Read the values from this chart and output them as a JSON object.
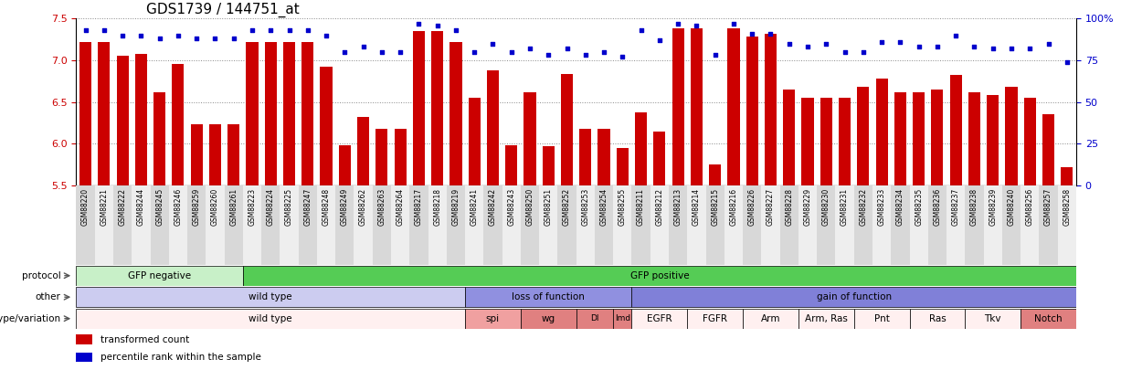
{
  "title": "GDS1739 / 144751_at",
  "samples": [
    "GSM88220",
    "GSM88221",
    "GSM88222",
    "GSM88244",
    "GSM88245",
    "GSM88246",
    "GSM88259",
    "GSM88260",
    "GSM88261",
    "GSM88223",
    "GSM88224",
    "GSM88225",
    "GSM88247",
    "GSM88248",
    "GSM88249",
    "GSM88262",
    "GSM88263",
    "GSM88264",
    "GSM88217",
    "GSM88218",
    "GSM88219",
    "GSM88241",
    "GSM88242",
    "GSM88243",
    "GSM88250",
    "GSM88251",
    "GSM88252",
    "GSM88253",
    "GSM88254",
    "GSM88255",
    "GSM88211",
    "GSM88212",
    "GSM88213",
    "GSM88214",
    "GSM88215",
    "GSM88216",
    "GSM88226",
    "GSM88227",
    "GSM88228",
    "GSM88229",
    "GSM88230",
    "GSM88231",
    "GSM88232",
    "GSM88233",
    "GSM88234",
    "GSM88235",
    "GSM88236",
    "GSM88237",
    "GSM88238",
    "GSM88239",
    "GSM88240",
    "GSM88256",
    "GSM88257",
    "GSM88258"
  ],
  "bar_values": [
    7.22,
    7.22,
    7.05,
    7.08,
    6.62,
    6.95,
    6.23,
    6.23,
    6.23,
    7.22,
    7.22,
    7.22,
    7.22,
    6.92,
    5.98,
    6.32,
    6.18,
    6.18,
    7.35,
    7.35,
    7.22,
    6.55,
    6.88,
    5.98,
    6.62,
    5.97,
    6.83,
    6.18,
    6.18,
    5.95,
    6.38,
    6.15,
    7.38,
    7.38,
    5.75,
    7.38,
    7.28,
    7.32,
    6.65,
    6.55,
    6.55,
    6.55,
    6.68,
    6.78,
    6.62,
    6.62,
    6.65,
    6.82,
    6.62,
    6.58,
    6.68,
    6.55,
    6.35,
    5.72
  ],
  "percentile_values": [
    93,
    93,
    90,
    90,
    88,
    90,
    88,
    88,
    88,
    93,
    93,
    93,
    93,
    90,
    80,
    83,
    80,
    80,
    97,
    96,
    93,
    80,
    85,
    80,
    82,
    78,
    82,
    78,
    80,
    77,
    93,
    87,
    97,
    96,
    78,
    97,
    91,
    91,
    85,
    83,
    85,
    80,
    80,
    86,
    86,
    83,
    83,
    90,
    83,
    82,
    82,
    82,
    85,
    74
  ],
  "protocol_groups": [
    {
      "label": "GFP negative",
      "start": 0,
      "end": 9,
      "color": "#c8f0c8"
    },
    {
      "label": "GFP positive",
      "start": 9,
      "end": 54,
      "color": "#55cc55"
    }
  ],
  "other_groups": [
    {
      "label": "wild type",
      "start": 0,
      "end": 21,
      "color": "#ccccf0"
    },
    {
      "label": "loss of function",
      "start": 21,
      "end": 30,
      "color": "#9090e0"
    },
    {
      "label": "gain of function",
      "start": 30,
      "end": 54,
      "color": "#8080d8"
    }
  ],
  "genotype_groups": [
    {
      "label": "wild type",
      "start": 0,
      "end": 21,
      "color": "#fff0f0"
    },
    {
      "label": "spi",
      "start": 21,
      "end": 24,
      "color": "#f0a0a0"
    },
    {
      "label": "wg",
      "start": 24,
      "end": 27,
      "color": "#e08080"
    },
    {
      "label": "Dl",
      "start": 27,
      "end": 29,
      "color": "#e08080"
    },
    {
      "label": "lmd",
      "start": 29,
      "end": 30,
      "color": "#e08080"
    },
    {
      "label": "EGFR",
      "start": 30,
      "end": 33,
      "color": "#fff0f0"
    },
    {
      "label": "FGFR",
      "start": 33,
      "end": 36,
      "color": "#fff0f0"
    },
    {
      "label": "Arm",
      "start": 36,
      "end": 39,
      "color": "#fff0f0"
    },
    {
      "label": "Arm, Ras",
      "start": 39,
      "end": 42,
      "color": "#fff0f0"
    },
    {
      "label": "Pnt",
      "start": 42,
      "end": 45,
      "color": "#fff0f0"
    },
    {
      "label": "Ras",
      "start": 45,
      "end": 48,
      "color": "#fff0f0"
    },
    {
      "label": "Tkv",
      "start": 48,
      "end": 51,
      "color": "#fff0f0"
    },
    {
      "label": "Notch",
      "start": 51,
      "end": 54,
      "color": "#e08080"
    }
  ],
  "row_labels": [
    "protocol",
    "other",
    "genotype/variation"
  ],
  "ylim_left": [
    5.5,
    7.5
  ],
  "ylim_right": [
    0,
    100
  ],
  "yticks_left": [
    5.5,
    6.0,
    6.5,
    7.0,
    7.5
  ],
  "yticks_right": [
    0,
    25,
    50,
    75,
    100
  ],
  "bar_color": "#cc0000",
  "dot_color": "#0000cc",
  "grid_color": "#888888"
}
